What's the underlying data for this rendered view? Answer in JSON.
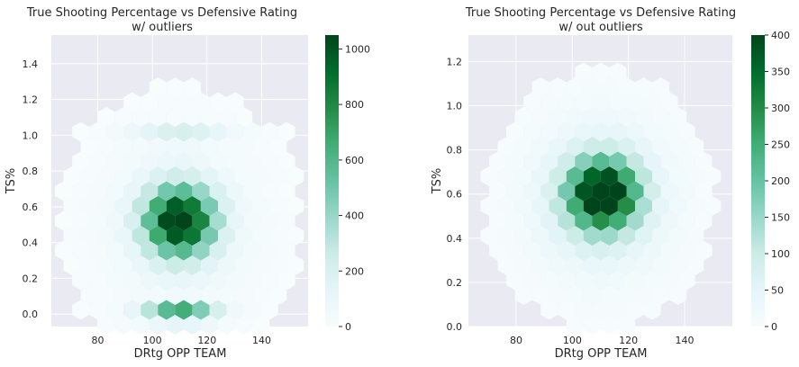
{
  "chart_data": [
    {
      "type": "heatmap",
      "subtype": "hexbin",
      "title": "True Shooting Percentage vs Defensive Rating",
      "subtitle": "w/ outliers",
      "xlabel": "DRtg OPP TEAM",
      "ylabel": "TS%",
      "xlim": [
        63,
        157
      ],
      "ylim": [
        -0.07,
        1.56
      ],
      "xticks": [
        80,
        100,
        120,
        140
      ],
      "yticks": [
        0.0,
        0.2,
        0.4,
        0.6,
        0.8,
        1.0,
        1.2,
        1.4
      ],
      "ytick_labels": [
        "0.0",
        "0.2",
        "0.4",
        "0.6",
        "0.8",
        "1.0",
        "1.2",
        "1.4"
      ],
      "colorbar": {
        "min": 0,
        "max": 1050,
        "ticks": [
          0,
          200,
          400,
          600,
          800,
          1000
        ],
        "colormap": "BuGn"
      },
      "grid": true,
      "background": "#eaeaf2",
      "density_peaks": [
        {
          "x": 110,
          "y": 0.5,
          "count": 1050
        },
        {
          "x": 110,
          "y": 0.0,
          "count": 850
        },
        {
          "x": 110,
          "y": 1.0,
          "count": 250
        }
      ]
    },
    {
      "type": "heatmap",
      "subtype": "hexbin",
      "title": "True Shooting Percentage vs Defensive Rating",
      "subtitle": "w/ out outliers",
      "xlabel": "DRtg OPP TEAM",
      "ylabel": "TS%",
      "xlim": [
        63,
        157
      ],
      "ylim": [
        0.0,
        1.32
      ],
      "xticks": [
        80,
        100,
        120,
        140
      ],
      "yticks": [
        0.0,
        0.2,
        0.4,
        0.6,
        0.8,
        1.0,
        1.2
      ],
      "ytick_labels": [
        "0.0",
        "0.2",
        "0.4",
        "0.6",
        "0.8",
        "1.0",
        "1.2"
      ],
      "colorbar": {
        "min": 0,
        "max": 400,
        "ticks": [
          0,
          50,
          100,
          150,
          200,
          250,
          300,
          350,
          400
        ],
        "colormap": "BuGn"
      },
      "grid": true,
      "background": "#eaeaf2",
      "density_peaks": [
        {
          "x": 110,
          "y": 0.57,
          "count": 400
        }
      ]
    }
  ]
}
